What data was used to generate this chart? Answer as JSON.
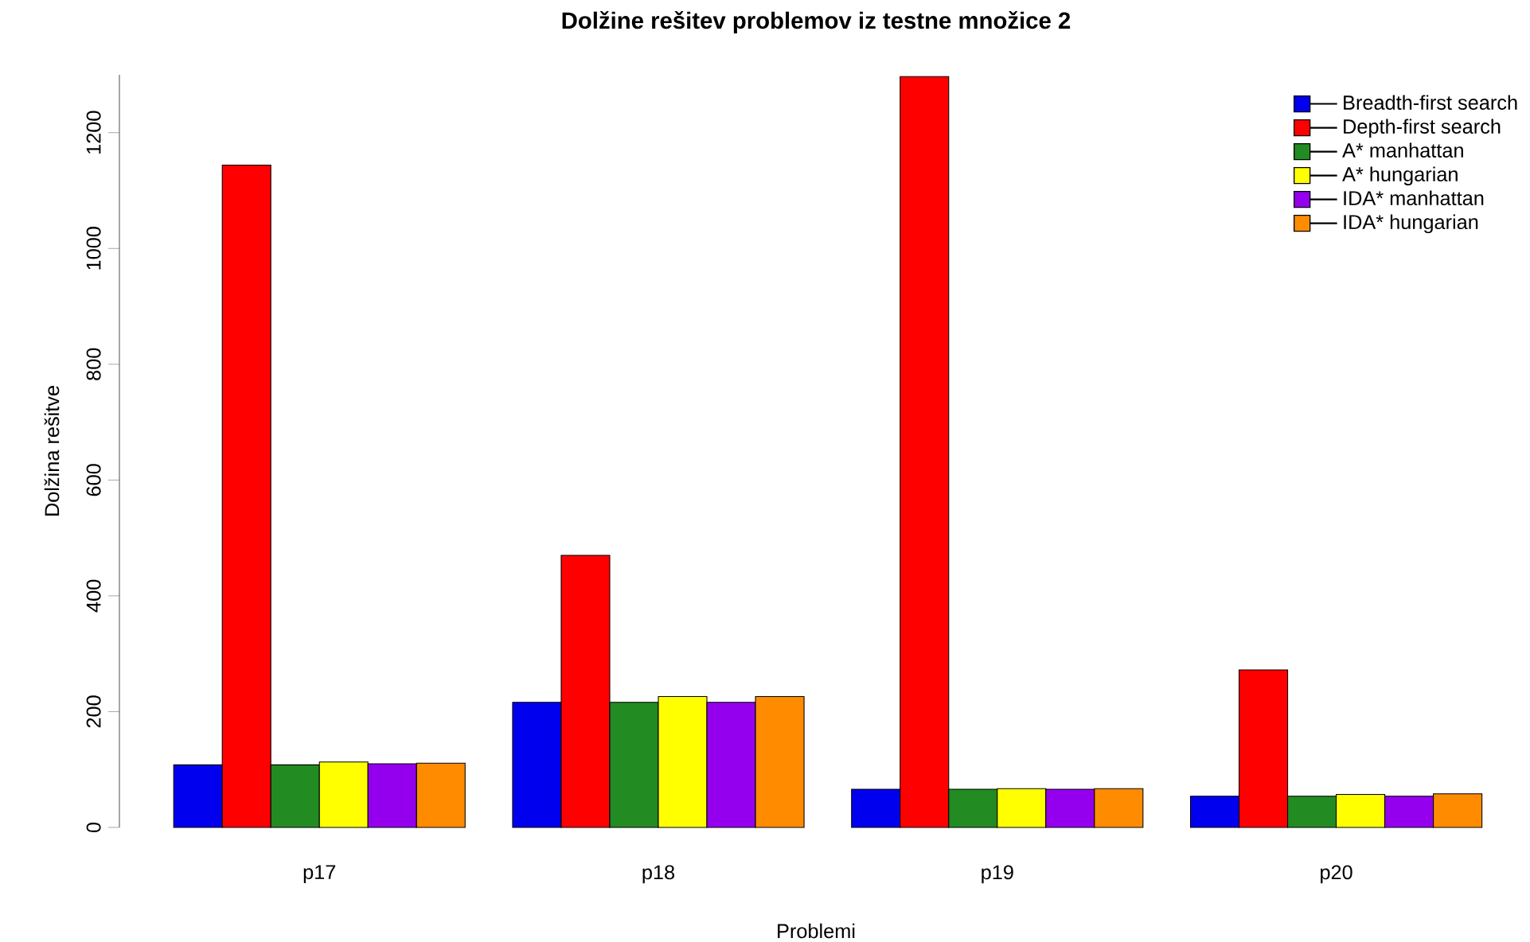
{
  "chart_data": {
    "type": "bar",
    "title": "Dolžine rešitev problemov iz testne množice 2",
    "xlabel": "Problemi",
    "ylabel": "Dolžina rešitve",
    "categories": [
      "p17",
      "p18",
      "p19",
      "p20"
    ],
    "series": [
      {
        "name": "Breadth-first search",
        "color": "#0000ee",
        "values": [
          108,
          216,
          66,
          54
        ]
      },
      {
        "name": "Depth-first search",
        "color": "#ff0000",
        "values": [
          1144,
          470,
          1297,
          272
        ]
      },
      {
        "name": "A* manhattan",
        "color": "#228b22",
        "values": [
          108,
          216,
          66,
          54
        ]
      },
      {
        "name": "A* hungarian",
        "color": "#ffff00",
        "values": [
          113,
          226,
          67,
          57
        ]
      },
      {
        "name": "IDA* manhattan",
        "color": "#9400ee",
        "values": [
          110,
          216,
          66,
          54
        ]
      },
      {
        "name": "IDA* hungarian",
        "color": "#ff8c00",
        "values": [
          111,
          226,
          67,
          58
        ]
      }
    ],
    "ylim": [
      0,
      1300
    ],
    "yticks": [
      0,
      200,
      400,
      600,
      800,
      1000,
      1200
    ],
    "legend": "top right"
  }
}
